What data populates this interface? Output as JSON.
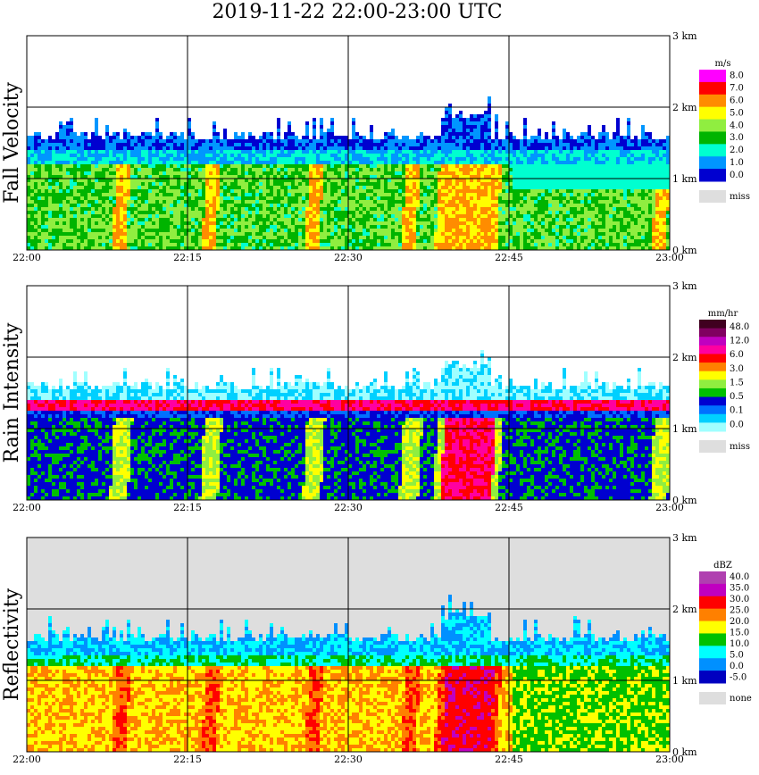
{
  "title": "2019-11-22   22:00-23:00 UTC",
  "x_ticks": [
    "22:00",
    "22:15",
    "22:30",
    "22:45",
    "23:00"
  ],
  "y_ticks": [
    "0 km",
    "1 km",
    "2 km",
    "3 km"
  ],
  "colors": {
    "missing": "#dedede",
    "grid": "#000000"
  },
  "chart_data": [
    {
      "type": "heatmap",
      "panel": "fall-velocity",
      "ylabel": "Fall Velocity",
      "x": [
        "22:00",
        "22:15",
        "22:30",
        "22:45",
        "23:00"
      ],
      "y_ticks": [
        "0 km",
        "1 km",
        "2 km",
        "3 km"
      ],
      "ylim": [
        0,
        3
      ],
      "echo_top_km": 1.55,
      "colorbar": {
        "unit": "m/s",
        "labels": [
          "8.0",
          "7.0",
          "6.0",
          "5.0",
          "4.0",
          "3.0",
          "2.0",
          "1.0",
          "0.0"
        ],
        "colors": [
          "#ff00ff",
          "#ff0000",
          "#ff8c00",
          "#ffff00",
          "#90ee40",
          "#00b400",
          "#00ffd0",
          "#0096ff",
          "#0000d0"
        ],
        "missing_label": "miss"
      }
    },
    {
      "type": "heatmap",
      "panel": "rain-intensity",
      "ylabel": "Rain Intensity",
      "x": [
        "22:00",
        "22:15",
        "22:30",
        "22:45",
        "23:00"
      ],
      "y_ticks": [
        "0 km",
        "1 km",
        "2 km",
        "3 km"
      ],
      "ylim": [
        0,
        3
      ],
      "echo_top_km": 1.55,
      "bright_band_km": 1.35,
      "colorbar": {
        "unit": "mm/hr",
        "labels": [
          "48.0",
          "12.0",
          "6.0",
          "3.0",
          "1.5",
          "0.5",
          "0.1",
          "0.0"
        ],
        "colors": [
          "#400020",
          "#800060",
          "#c000c0",
          "#ff00a0",
          "#ff0000",
          "#ff8000",
          "#ffff00",
          "#90ee40",
          "#00c000",
          "#0000d0",
          "#0070ff",
          "#00d0ff",
          "#a0ffff"
        ],
        "missing_label": "miss"
      }
    },
    {
      "type": "heatmap",
      "panel": "reflectivity",
      "ylabel": "Reflectivity",
      "x": [
        "22:00",
        "22:15",
        "22:30",
        "22:45",
        "23:00"
      ],
      "y_ticks": [
        "0 km",
        "1 km",
        "2 km",
        "3 km"
      ],
      "ylim": [
        0,
        3
      ],
      "echo_top_km": 1.55,
      "colorbar": {
        "unit": "dBZ",
        "labels": [
          "40.0",
          "35.0",
          "30.0",
          "25.0",
          "20.0",
          "15.0",
          "10.0",
          "5.0",
          "0.0",
          "-5.0"
        ],
        "colors": [
          "#b040b0",
          "#c000c0",
          "#ff0000",
          "#ff8000",
          "#ffff00",
          "#00c000",
          "#00ffff",
          "#0090ff",
          "#0000c0"
        ],
        "missing_label": "none"
      }
    }
  ]
}
